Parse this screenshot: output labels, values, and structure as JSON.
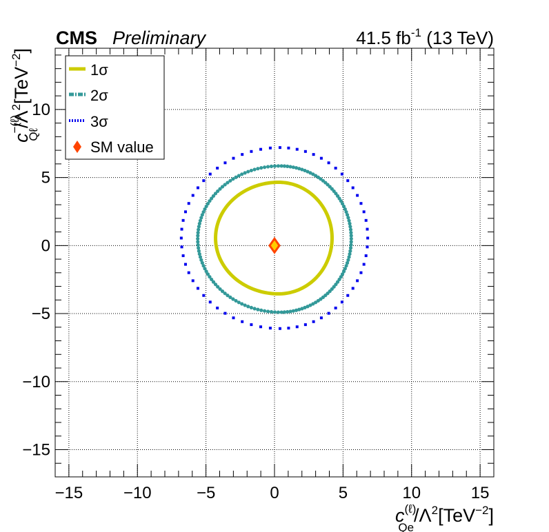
{
  "header": {
    "experiment": "CMS",
    "status": "Preliminary",
    "lumi": "41.5 fb",
    "lumi_exp": "-1",
    "energy": " (13 TeV)"
  },
  "axes": {
    "x": {
      "var": "c",
      "sup": "(ℓ)",
      "sub": "Qe",
      "rest": "/Λ",
      "sq": "2",
      "unit": "[TeV",
      "unit_exp": "−2",
      "close": "]"
    },
    "y": {
      "var": "c",
      "sup": "−(ℓ)",
      "sub": "Qℓ",
      "rest": "/Λ",
      "sq": "2",
      "unit": "[TeV",
      "unit_exp": "−2",
      "close": "]"
    }
  },
  "legend": {
    "items": [
      {
        "label": "1σ",
        "color": "#cccc00",
        "style": "solid"
      },
      {
        "label": "2σ",
        "color": "#339999",
        "style": "dash-dot"
      },
      {
        "label": "3σ",
        "color": "#0000ee",
        "style": "dotted"
      },
      {
        "label": "SM value",
        "color": "#ff4400",
        "style": "marker"
      }
    ]
  },
  "chart_data": {
    "type": "scatter",
    "xlim": [
      -16,
      16
    ],
    "ylim": [
      -17,
      14.5
    ],
    "xticks": [
      -15,
      -10,
      -5,
      0,
      5,
      10,
      15
    ],
    "yticks": [
      -15,
      -10,
      -5,
      0,
      5,
      10
    ],
    "grid": true,
    "legend_position": "top-left",
    "series": [
      {
        "name": "1σ",
        "kind": "contour",
        "color": "#cccc00",
        "center": [
          0.3,
          0.55
        ],
        "x_range": [
          -4.3,
          4.2
        ],
        "y_range": [
          -3.55,
          4.65
        ]
      },
      {
        "name": "2σ",
        "kind": "contour",
        "color": "#339999",
        "center": [
          0.4,
          0.5
        ],
        "x_range": [
          -5.6,
          5.6
        ],
        "y_range": [
          -4.9,
          5.85
        ]
      },
      {
        "name": "3σ",
        "kind": "contour",
        "color": "#0000ee",
        "center": [
          0.4,
          0.55
        ],
        "x_range": [
          -6.8,
          6.8
        ],
        "y_range": [
          -6.1,
          7.2
        ]
      },
      {
        "name": "SM value",
        "kind": "point",
        "color": "#ff4400",
        "x": 0,
        "y": 0
      }
    ]
  }
}
